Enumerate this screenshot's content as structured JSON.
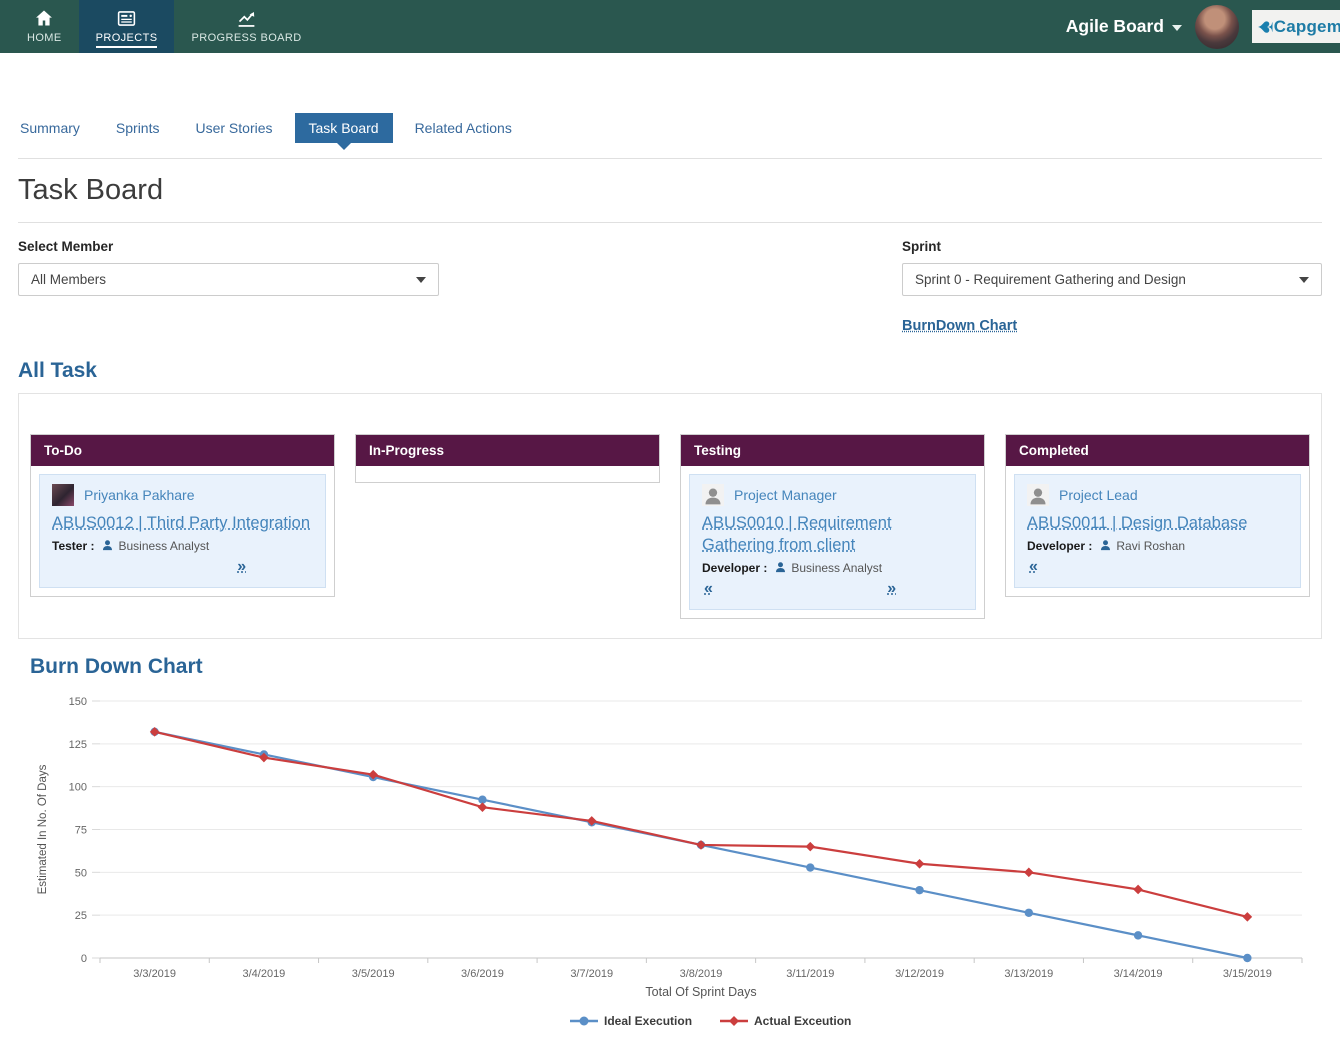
{
  "colors": {
    "navbar": "#2a574f",
    "navbar_active": "#1b4a61",
    "tab_active": "#2d6a9f",
    "accent_blue": "#2a6496",
    "column_header": "#571745",
    "card_background": "#e9f2fc",
    "chart_ideal": "#5b8fc7",
    "chart_actual": "#cb3e3e"
  },
  "navbar": {
    "brand": "Agile Board",
    "logo_text": "Capgemini",
    "items": [
      {
        "id": "home",
        "label": "HOME",
        "icon": "home-icon",
        "active": false
      },
      {
        "id": "projects",
        "label": "PROJECTS",
        "icon": "projects-icon",
        "active": true
      },
      {
        "id": "progress-board",
        "label": "PROGRESS BOARD",
        "icon": "progress-chart-icon",
        "active": false
      }
    ]
  },
  "tabs": {
    "items": [
      {
        "label": "Summary",
        "active": false
      },
      {
        "label": "Sprints",
        "active": false
      },
      {
        "label": "User Stories",
        "active": false
      },
      {
        "label": "Task Board",
        "active": true
      },
      {
        "label": "Related Actions",
        "active": false
      }
    ]
  },
  "page": {
    "title": "Task Board"
  },
  "filters": {
    "member_label": "Select Member",
    "member_value": "All Members",
    "sprint_label": "Sprint",
    "sprint_value": "Sprint 0 - Requirement Gathering and Design",
    "burndown_link_label": "BurnDown Chart"
  },
  "board": {
    "heading": "All Task",
    "columns": [
      {
        "title": "To-Do",
        "cards": [
          {
            "assignee": "Priyanka Pakhare",
            "avatar": "photo",
            "task": "ABUS0012 | Third Party Integration",
            "role_label": "Tester :",
            "role_value": "Business Analyst",
            "nav": [
              "next"
            ]
          }
        ]
      },
      {
        "title": "In-Progress",
        "cards": []
      },
      {
        "title": "Testing",
        "cards": [
          {
            "assignee": "Project Manager",
            "avatar": "placeholder",
            "task": "ABUS0010 | Requirement Gathering from client",
            "role_label": "Developer :",
            "role_value": "Business Analyst",
            "nav": [
              "prev",
              "next"
            ]
          }
        ]
      },
      {
        "title": "Completed",
        "cards": [
          {
            "assignee": "Project Lead",
            "avatar": "placeholder",
            "task": "ABUS0011 | Design Database",
            "role_label": "Developer :",
            "role_value": "Ravi Roshan",
            "nav": [
              "prev"
            ]
          }
        ]
      }
    ]
  },
  "chart_section": {
    "heading": "Burn Down Chart"
  },
  "chart_data": {
    "type": "line",
    "title": "Burn Down Chart",
    "x": [
      "3/3/2019",
      "3/4/2019",
      "3/5/2019",
      "3/6/2019",
      "3/7/2019",
      "3/8/2019",
      "3/11/2019",
      "3/12/2019",
      "3/13/2019",
      "3/14/2019",
      "3/15/2019"
    ],
    "series": [
      {
        "name": "Ideal Execution",
        "color": "#5b8fc7",
        "marker": "circle",
        "values": [
          132,
          118.8,
          105.6,
          92.4,
          79.2,
          66,
          52.8,
          39.6,
          26.4,
          13.2,
          0
        ]
      },
      {
        "name": "Actual Exceution",
        "color": "#cb3e3e",
        "marker": "diamond",
        "values": [
          132,
          117,
          107,
          88,
          80,
          66,
          65,
          55,
          50,
          40,
          24
        ]
      }
    ],
    "xlabel": "Total Of Sprint Days",
    "ylabel": "Estimated In No. Of Days",
    "ylim": [
      0,
      150
    ],
    "ytick_step": 25,
    "grid": true,
    "legend_position": "bottom"
  },
  "icons": {
    "prev_chevron": "«",
    "next_chevron": "»"
  }
}
